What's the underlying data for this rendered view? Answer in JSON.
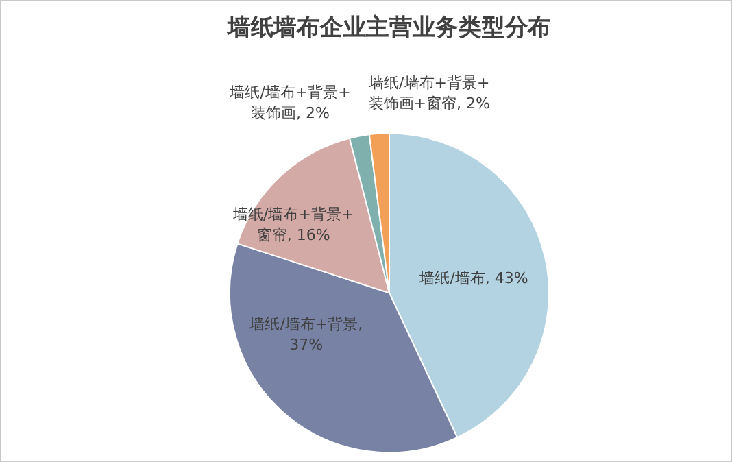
{
  "chart_data": {
    "type": "pie",
    "title": "墙纸墙布企业主营业务类型分布",
    "categories": [
      "墙纸/墙布",
      "墙纸/墙布+背景",
      "墙纸/墙布+背景+窗帘",
      "墙纸/墙布+背景+装饰画",
      "墙纸/墙布+背景+装饰画+窗帘"
    ],
    "values": [
      43,
      37,
      16,
      2,
      2
    ],
    "value_labels": [
      ", 43%",
      ", 37%",
      ", 16%",
      ", 2%",
      ", 2%"
    ],
    "colors": [
      "#b4d3e2",
      "#7782a4",
      "#d4aaa6",
      "#7fb0ae",
      "#f2a057"
    ],
    "legend": false
  }
}
